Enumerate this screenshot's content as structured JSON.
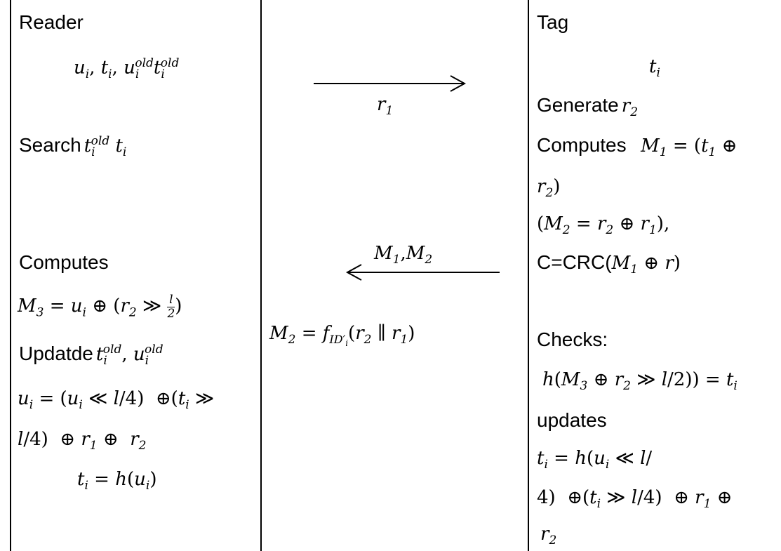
{
  "reader": {
    "heading": "Reader",
    "search_label": "Search",
    "computes_label": "Computes",
    "update_label": "Updatde"
  },
  "channel": {
    "msg1": "r1",
    "msg2": "M1,M2"
  },
  "tag": {
    "heading": "Tag",
    "generate_label": "Generate",
    "computes_label": "Computes",
    "crc_prefix": "C=CRC(",
    "checks_label": "Checks:",
    "updates_label": "updates"
  }
}
